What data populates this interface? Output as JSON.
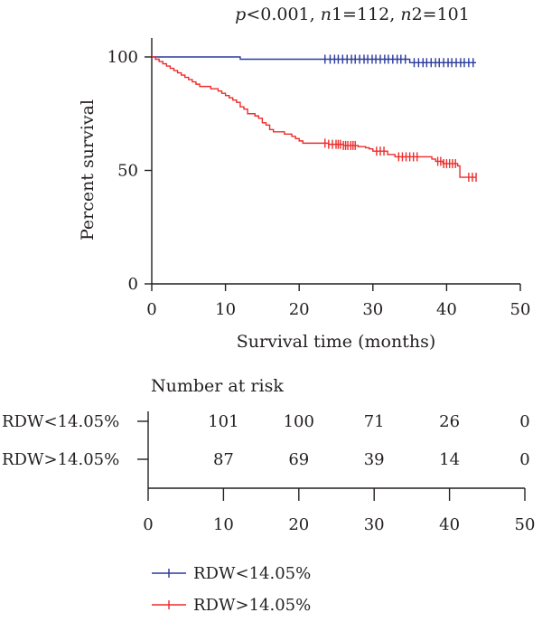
{
  "chart_data": {
    "type": "line",
    "subtype": "kaplan-meier survival curve with number-at-risk table",
    "annotation": "p<0.001, n1=112, n2=101",
    "annotation_parts": [
      {
        "text": "p",
        "italic": true
      },
      {
        "text": "<0.001, ",
        "italic": false
      },
      {
        "text": "n",
        "italic": true
      },
      {
        "text": "1=112, ",
        "italic": false
      },
      {
        "text": "n",
        "italic": true
      },
      {
        "text": "2=101",
        "italic": false
      }
    ],
    "xlabel": "Survival time (months)",
    "ylabel": "Percent survival",
    "xlim": [
      0,
      50
    ],
    "ylim": [
      0,
      100
    ],
    "xticks": [
      0,
      10,
      20,
      30,
      40,
      50
    ],
    "yticks": [
      0,
      50,
      100
    ],
    "legend_position": "bottom-left",
    "series": [
      {
        "name": "RDW<14.05%",
        "color": "#2b3a9b",
        "steps": [
          [
            0,
            100
          ],
          [
            12,
            100
          ],
          [
            12,
            99
          ],
          [
            35,
            99
          ],
          [
            35,
            97.5
          ],
          [
            44,
            97.5
          ]
        ],
        "censored": [
          23.5,
          24.2,
          24.8,
          25.3,
          25.9,
          26.5,
          27.1,
          27.6,
          28.2,
          28.8,
          29.3,
          29.9,
          30.4,
          31.0,
          31.6,
          32.1,
          32.7,
          33.3,
          33.8,
          34.4,
          35.6,
          36.2,
          36.8,
          37.3,
          37.9,
          38.5,
          39.0,
          39.6,
          40.2,
          40.7,
          41.3,
          41.9,
          42.4,
          43.0,
          43.6
        ]
      },
      {
        "name": "RDW>14.05%",
        "color": "#ee2b2b",
        "steps": [
          [
            0,
            100
          ],
          [
            0.5,
            99
          ],
          [
            1.0,
            98
          ],
          [
            1.5,
            97
          ],
          [
            2.0,
            96
          ],
          [
            2.5,
            95
          ],
          [
            3.0,
            94
          ],
          [
            3.5,
            93
          ],
          [
            4.0,
            92
          ],
          [
            4.5,
            91
          ],
          [
            5.0,
            90
          ],
          [
            5.5,
            89
          ],
          [
            6.0,
            88
          ],
          [
            6.5,
            87
          ],
          [
            8.0,
            86
          ],
          [
            9.0,
            85
          ],
          [
            9.5,
            84
          ],
          [
            10.0,
            83
          ],
          [
            10.5,
            82
          ],
          [
            11.0,
            81
          ],
          [
            11.5,
            80
          ],
          [
            12.0,
            78
          ],
          [
            12.5,
            77
          ],
          [
            13.0,
            75
          ],
          [
            14.0,
            74
          ],
          [
            14.5,
            73
          ],
          [
            15.0,
            71
          ],
          [
            15.5,
            70
          ],
          [
            16.0,
            68
          ],
          [
            16.5,
            67
          ],
          [
            18.0,
            66
          ],
          [
            19.0,
            65
          ],
          [
            19.5,
            64
          ],
          [
            20.0,
            63
          ],
          [
            20.5,
            62
          ],
          [
            24.0,
            61.5
          ],
          [
            26.0,
            61
          ],
          [
            28.0,
            60.5
          ],
          [
            29.0,
            60
          ],
          [
            29.5,
            59.5
          ],
          [
            30.0,
            58.5
          ],
          [
            32.0,
            57
          ],
          [
            33.0,
            56
          ],
          [
            38.0,
            55
          ],
          [
            38.5,
            54
          ],
          [
            39.5,
            53
          ],
          [
            41.5,
            52
          ],
          [
            41.8,
            47
          ],
          [
            44.0,
            47
          ]
        ],
        "censored": [
          23.5,
          24.0,
          24.5,
          25.0,
          25.3,
          25.6,
          26.0,
          26.3,
          26.6,
          27.0,
          27.3,
          27.6,
          30.5,
          31.0,
          31.5,
          33.5,
          34.0,
          34.5,
          35.0,
          35.5,
          36.0,
          38.8,
          39.2,
          39.6,
          40.0,
          40.4,
          40.8,
          41.2,
          43.0,
          43.5,
          44.0
        ]
      }
    ],
    "risk_table": {
      "title": "Number at risk",
      "times": [
        0,
        10,
        20,
        30,
        40,
        50
      ],
      "tick_labels": [
        "0",
        "10",
        "20",
        "30",
        "40",
        "50"
      ],
      "rows": [
        {
          "label": "RDW<14.05%",
          "counts": [
            {
              "t": 10,
              "n": "101"
            },
            {
              "t": 20,
              "n": "100"
            },
            {
              "t": 30,
              "n": "71"
            },
            {
              "t": 40,
              "n": "26"
            },
            {
              "t": 50,
              "n": "0"
            }
          ]
        },
        {
          "label": "RDW>14.05%",
          "counts": [
            {
              "t": 10,
              "n": "87"
            },
            {
              "t": 20,
              "n": "69"
            },
            {
              "t": 30,
              "n": "39"
            },
            {
              "t": 40,
              "n": "14"
            },
            {
              "t": 50,
              "n": "0"
            }
          ]
        }
      ]
    }
  }
}
